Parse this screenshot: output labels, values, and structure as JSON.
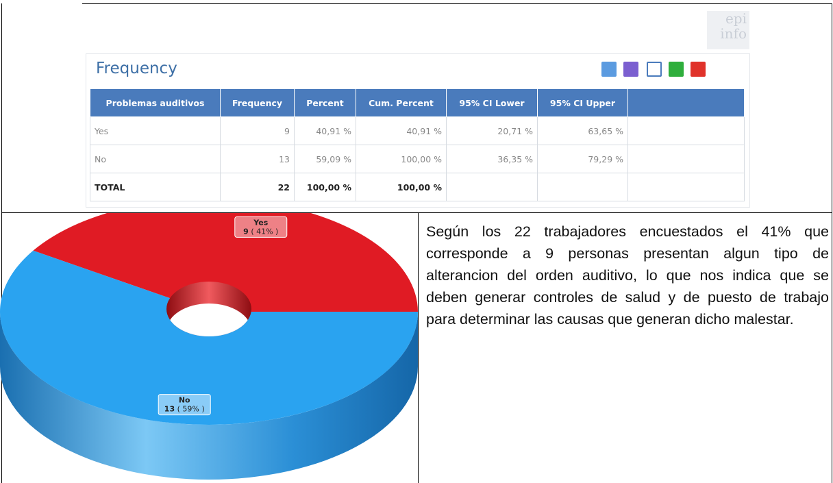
{
  "logo": [
    "epi",
    "info"
  ],
  "panel": {
    "title": "Frequency",
    "table": {
      "header": [
        "Problemas auditivos",
        "Frequency",
        "Percent",
        "Cum. Percent",
        "95% CI Lower",
        "95% CI Upper"
      ],
      "rows": [
        [
          "Yes",
          "9",
          "40,91 %",
          "40,91 %",
          "20,71 %",
          "63,65 %"
        ],
        [
          "No",
          "13",
          "59,09 %",
          "100,00 %",
          "36,35 %",
          "79,29 %"
        ],
        [
          "TOTAL",
          "22",
          "100,00 %",
          "100,00 %",
          "",
          ""
        ]
      ]
    }
  },
  "chart_data": {
    "type": "pie",
    "categories": [
      "Yes",
      "No"
    ],
    "values": [
      9,
      13
    ],
    "value_labels": [
      "( 41% )",
      "( 59% )"
    ],
    "colors": [
      "#e01b24",
      "#2aa3f0"
    ]
  },
  "paragraph": "Según los 22 trabajadores encuestados el 41% que corresponde a 9 personas presentan algun tipo de alterancion del orden auditivo, lo que nos indica que se deben generar controles de salud y de puesto de trabajo para determinar las causas que generan dicho malestar."
}
